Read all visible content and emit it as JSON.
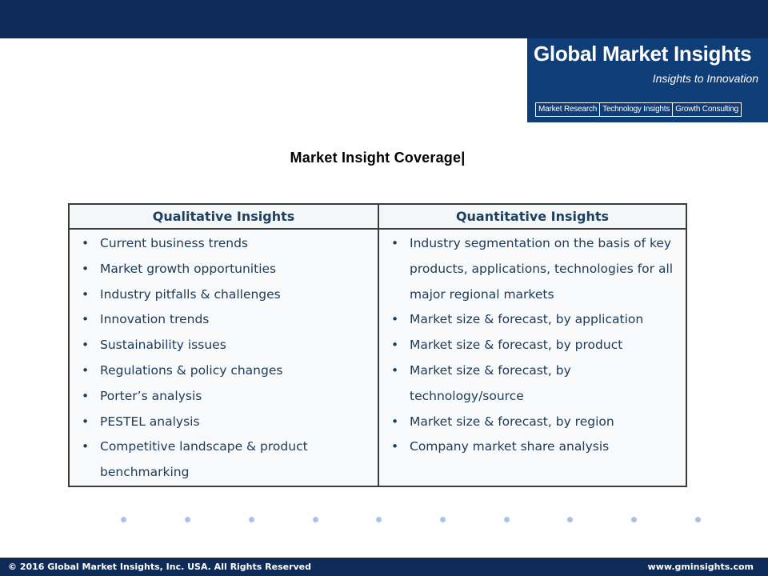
{
  "logo": {
    "name": "Global Market Insights",
    "tagline": "Insights to Innovation",
    "menu": [
      "Market Research",
      "Technology Insights",
      "Growth Consulting"
    ]
  },
  "title": "Market Insight Coverage|",
  "table": {
    "headers": [
      "Qualitative Insights",
      "Quantitative Insights"
    ],
    "qualitative": [
      "Current business trends",
      "Market growth opportunities",
      "Industry pitfalls & challenges",
      "Innovation trends",
      "Sustainability issues",
      "Regulations & policy changes",
      "Porter’s analysis",
      "PESTEL analysis",
      "Competitive landscape & product benchmarking"
    ],
    "quantitative": [
      "Industry segmentation on the basis of key products, applications, technologies for all major regional markets",
      "Market size & forecast, by application",
      "Market size & forecast, by product",
      "Market size & forecast, by technology/source",
      "Market size & forecast, by region",
      "Company market share analysis"
    ]
  },
  "footer": {
    "copyright": "© 2016 Global Market Insights, Inc. USA.  All Rights Reserved",
    "website": "www.gminsights.com"
  }
}
